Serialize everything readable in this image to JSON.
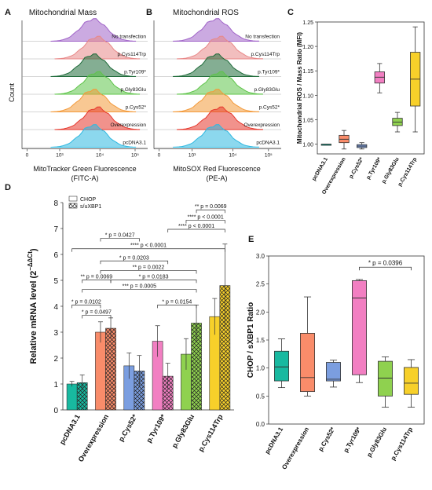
{
  "panels": {
    "A": {
      "letter": "A",
      "title": "Mitochondrial Mass",
      "ylabel": "Count",
      "xlabel_line1": "MitoTracker Green Fluorescence",
      "xlabel_line2": "(FITC-A)"
    },
    "B": {
      "letter": "B",
      "title": "Mitochondrial ROS",
      "xlabel_line1": "MitoSOX Red Fluorescence",
      "xlabel_line2": "(PE-A)"
    },
    "C": {
      "letter": "C"
    },
    "D": {
      "letter": "D"
    },
    "E": {
      "letter": "E"
    }
  },
  "histogram_tracks": [
    {
      "label": "No transfection",
      "color": "#a064c8"
    },
    {
      "label": "p.Cys114Trp",
      "color": "#e88888"
    },
    {
      "label": "p.Tyr109*",
      "color": "#1f6b3a"
    },
    {
      "label": "p.Gly83Glu",
      "color": "#5fc44a"
    },
    {
      "label": "p.Cys52*",
      "color": "#f39a3a"
    },
    {
      "label": "Overexpression",
      "color": "#e6392e"
    },
    {
      "label": "pcDNA3.1",
      "color": "#2eb8e0"
    }
  ],
  "colors": {
    "pcDNA3.1": "#18b9a0",
    "Overexpression": "#f98c6a",
    "p.Cys52*": "#7b9ee0",
    "p.Tyr109*": "#f27fc2",
    "p.Gly83Glu": "#8fd14f",
    "p.Cys114Trp": "#f7d02a"
  },
  "chart_data": [
    {
      "type": "box",
      "panel": "C",
      "ylabel": "Mitochondrial ROS / Mass Ratio (MFI)",
      "ylim": [
        0.98,
        1.25
      ],
      "yticks": [
        "1.00",
        "1.05",
        "1.10",
        "1.15",
        "1.20",
        "1.25"
      ],
      "categories": [
        "pcDNA3.1",
        "Overexpression",
        "p.Cys52*",
        "p.Tyr109*",
        "p.Gly83Glu",
        "p.Cys114Trp"
      ],
      "boxes": [
        {
          "min": 1.0,
          "q1": 1.0,
          "median": 1.0,
          "q3": 1.0,
          "max": 1.0
        },
        {
          "min": 0.99,
          "q1": 1.003,
          "median": 1.01,
          "q3": 1.018,
          "max": 1.028
        },
        {
          "min": 0.99,
          "q1": 0.993,
          "median": 0.996,
          "q3": 0.999,
          "max": 1.003
        },
        {
          "min": 1.105,
          "q1": 1.125,
          "median": 1.137,
          "q3": 1.148,
          "max": 1.165
        },
        {
          "min": 1.025,
          "q1": 1.038,
          "median": 1.045,
          "q3": 1.053,
          "max": 1.065
        },
        {
          "min": 1.025,
          "q1": 1.078,
          "median": 1.133,
          "q3": 1.188,
          "max": 1.24
        }
      ]
    },
    {
      "type": "bar",
      "panel": "D",
      "ylabel": "Relative mRNA level (2",
      "ylabel_sup": "−ΔΔCt",
      "ylabel_close": ")",
      "ylim": [
        0,
        8
      ],
      "yticks": [
        "0",
        "1",
        "2",
        "3",
        "4",
        "5",
        "6",
        "7",
        "8"
      ],
      "legend": [
        "CHOP",
        "s/uXBP1"
      ],
      "categories": [
        "pcDNA3.1",
        "Overexpression",
        "p.Cys52*",
        "p.Tyr109*",
        "p.Gly83Glu",
        "p.Cys114Trp"
      ],
      "series": [
        {
          "name": "CHOP",
          "values": [
            1.0,
            3.0,
            1.7,
            2.65,
            2.15,
            3.6
          ],
          "errors": [
            0.1,
            0.4,
            0.5,
            0.6,
            0.6,
            0.7
          ]
        },
        {
          "name": "s/uXBP1",
          "values": [
            1.05,
            3.15,
            1.5,
            1.3,
            3.35,
            4.8
          ],
          "errors": [
            0.3,
            0.4,
            0.6,
            0.5,
            0.7,
            1.6
          ]
        }
      ],
      "annotations": [
        {
          "text": "** p = 0.0069",
          "i": 9,
          "j": 11,
          "y": 7.72
        },
        {
          "text": "**** p < 0.0001",
          "i": 8,
          "j": 11,
          "y": 7.32
        },
        {
          "text": "**** p < 0.0001",
          "i": 7,
          "j": 11,
          "y": 6.97
        },
        {
          "text": "* p = 0.0427",
          "i": 2,
          "j": 5,
          "y": 6.62
        },
        {
          "text": "**** p < 0.0001",
          "i": 0,
          "j": 11,
          "y": 6.22
        },
        {
          "text": "* p = 0.0203",
          "i": 2,
          "j": 7,
          "y": 5.75
        },
        {
          "text": "** p = 0.0022",
          "i": 2,
          "j": 9,
          "y": 5.38
        },
        {
          "text": "** p = 0.0069",
          "i": 1,
          "j": 3,
          "y": 5.02
        },
        {
          "text": "* p = 0.0183",
          "i": 3,
          "j": 9,
          "y": 5.02
        },
        {
          "text": "*** p = 0.0005",
          "i": 1,
          "j": 9,
          "y": 4.65
        },
        {
          "text": "* p = 0.0102",
          "i": 0,
          "j": 2,
          "y": 4.05
        },
        {
          "text": "* p = 0.0154",
          "i": 6,
          "j": 9,
          "y": 4.05
        },
        {
          "text": "* p = 0.0497",
          "i": 1,
          "j": 3,
          "y": 3.65
        }
      ]
    },
    {
      "type": "box",
      "panel": "E",
      "ylabel": "CHOP / sXBP1 Ratio",
      "ylim": [
        0,
        3.0
      ],
      "yticks": [
        "0.0",
        "0.5",
        "1.0",
        "1.5",
        "2.0",
        "2.5",
        "3.0"
      ],
      "categories": [
        "pcDNA3.1",
        "Overexpression",
        "p.Cys52*",
        "p.Tyr109*",
        "p.Gly83Glu",
        "p.Cys114Trp"
      ],
      "boxes": [
        {
          "min": 0.65,
          "q1": 0.77,
          "median": 1.02,
          "q3": 1.3,
          "max": 1.52
        },
        {
          "min": 0.5,
          "q1": 0.58,
          "median": 0.83,
          "q3": 1.62,
          "max": 2.27
        },
        {
          "min": 0.66,
          "q1": 0.77,
          "median": 0.8,
          "q3": 1.1,
          "max": 1.14
        },
        {
          "min": 0.74,
          "q1": 0.88,
          "median": 2.25,
          "q3": 2.56,
          "max": 2.58
        },
        {
          "min": 0.3,
          "q1": 0.5,
          "median": 0.82,
          "q3": 1.12,
          "max": 1.2
        },
        {
          "min": 0.3,
          "q1": 0.53,
          "median": 0.73,
          "q3": 1.01,
          "max": 1.15
        }
      ],
      "annotations": [
        {
          "text": "* p = 0.0396",
          "i": 3,
          "j": 5,
          "y": 2.8
        }
      ]
    }
  ]
}
